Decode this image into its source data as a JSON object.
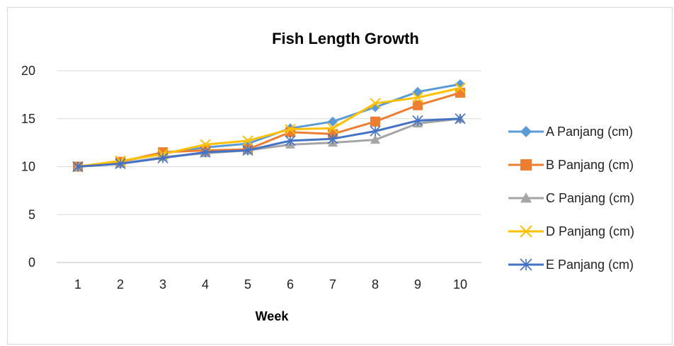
{
  "chart_data": {
    "type": "line",
    "title": "Fish Length Growth",
    "xlabel": "Week",
    "ylabel": "",
    "ylim": [
      0,
      20
    ],
    "yticks": [
      0,
      5,
      10,
      15,
      20
    ],
    "categories": [
      "1",
      "2",
      "3",
      "4",
      "5",
      "6",
      "7",
      "8",
      "9",
      "10"
    ],
    "grid": "horizontal",
    "legend": "right",
    "series": [
      {
        "name": "A Panjang (cm)",
        "color": "#5B9BD5",
        "marker": "diamond",
        "values": [
          10,
          10.5,
          11.4,
          12.0,
          12.4,
          14.0,
          14.7,
          16.2,
          17.8,
          18.6
        ]
      },
      {
        "name": "B Panjang (cm)",
        "color": "#ED7D31",
        "marker": "square",
        "values": [
          10,
          10.5,
          11.5,
          11.7,
          11.8,
          13.6,
          13.4,
          14.7,
          16.4,
          17.7
        ]
      },
      {
        "name": "C Panjang (cm)",
        "color": "#A5A5A5",
        "marker": "triangle",
        "values": [
          10,
          10.3,
          11.0,
          11.4,
          11.7,
          12.3,
          12.5,
          12.8,
          14.5,
          15.0
        ]
      },
      {
        "name": "D Panjang (cm)",
        "color": "#FFC000",
        "marker": "x",
        "values": [
          10,
          10.6,
          11.3,
          12.3,
          12.7,
          13.9,
          14.0,
          16.6,
          17.2,
          18.2
        ]
      },
      {
        "name": "E Panjang (cm)",
        "color": "#4472C4",
        "marker": "star",
        "values": [
          10,
          10.3,
          10.9,
          11.5,
          11.7,
          12.7,
          12.9,
          13.7,
          14.8,
          15.0
        ]
      }
    ]
  }
}
